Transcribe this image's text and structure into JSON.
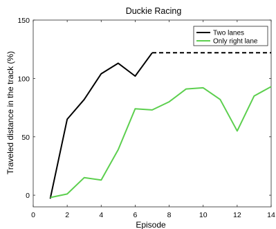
{
  "chart_data": {
    "type": "line",
    "title": "Duckie Racing",
    "xlabel": "Episode",
    "ylabel": "Traveled distance in the track (%)",
    "xlim": [
      0,
      14
    ],
    "ylim": [
      -10,
      150
    ],
    "xticks": [
      0,
      2,
      4,
      6,
      8,
      10,
      12,
      14
    ],
    "yticks": [
      0,
      50,
      100,
      150
    ],
    "grid": false,
    "legend_position": "top-right",
    "series": [
      {
        "name": "Two lanes",
        "color": "#000000",
        "x": [
          1,
          2,
          3,
          4,
          5,
          6,
          7
        ],
        "y": [
          -3,
          65,
          82,
          104,
          113,
          102,
          122
        ],
        "continuation": {
          "style": "dashed",
          "x": [
            7,
            14
          ],
          "y": [
            122,
            122
          ]
        }
      },
      {
        "name": "Only right lane",
        "color": "#5ccf4e",
        "x": [
          1,
          2,
          3,
          4,
          5,
          6,
          7,
          8,
          9,
          10,
          11,
          12,
          13,
          14
        ],
        "y": [
          -2,
          1,
          15,
          13,
          39,
          74,
          73,
          80,
          91,
          92,
          82,
          55,
          85,
          93
        ]
      }
    ]
  }
}
